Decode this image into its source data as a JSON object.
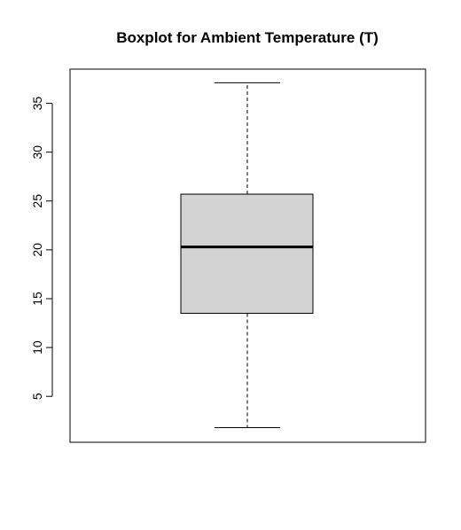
{
  "chart_data": {
    "type": "boxplot",
    "title": "Boxplot for Ambient Temperature (T)",
    "xlabel": "",
    "ylabel": "",
    "ylim": [
      0.3,
      38.5
    ],
    "yticks": [
      5,
      10,
      15,
      20,
      25,
      30,
      35
    ],
    "box": {
      "whisker_low": 1.8,
      "q1": 13.5,
      "median": 20.3,
      "q3": 25.7,
      "whisker_high": 37.1
    },
    "box_fill": "#d3d3d3",
    "grid": false
  }
}
